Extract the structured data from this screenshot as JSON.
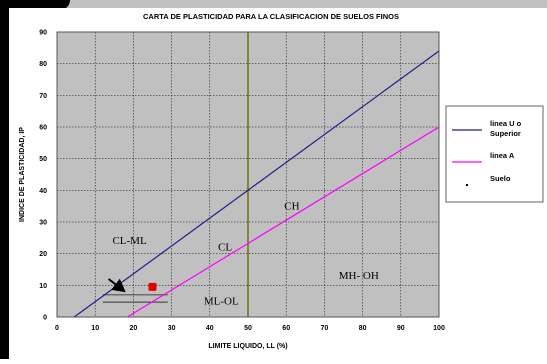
{
  "chart_data": {
    "type": "line",
    "title": "CARTA DE PLASTICIDAD PARA LA CLASIFICACION DE SUELOS FINOS",
    "xlabel": "LIMITE LIQUIDO, LL (%)",
    "ylabel": "INDICE DE PLASTICIDAD, IP",
    "xlim": [
      0,
      100
    ],
    "ylim": [
      0,
      90
    ],
    "xticks": [
      "0",
      "10",
      "20",
      "30",
      "40",
      "50",
      "60",
      "70",
      "80",
      "90",
      "100"
    ],
    "yticks": [
      "0",
      "10",
      "20",
      "30",
      "40",
      "50",
      "60",
      "70",
      "80",
      "90"
    ],
    "grid": true,
    "legend_position": "right",
    "series": [
      {
        "name": "linea U o Superior",
        "color": "#1f1f8f",
        "x": [
          4.5,
          100
        ],
        "y": [
          0,
          84
        ]
      },
      {
        "name": "linea A",
        "color": "#ff00ff",
        "x": [
          18.4,
          100
        ],
        "y": [
          0,
          60
        ]
      },
      {
        "name": "Suelo",
        "color": "#e00000",
        "x": [
          25
        ],
        "y": [
          9.5
        ]
      }
    ],
    "divider_x": 50,
    "divider_color": "#6b6b00",
    "hatch_lines": [
      {
        "x": [
          12,
          29
        ],
        "y": [
          7,
          7
        ]
      },
      {
        "x": [
          12,
          29
        ],
        "y": [
          4.7,
          4.7
        ]
      }
    ],
    "region_labels": [
      {
        "text": "CH",
        "x": 61.5,
        "y": 34
      },
      {
        "text": "CL",
        "x": 44,
        "y": 21
      },
      {
        "text": "CL-ML",
        "x": 19,
        "y": 23
      },
      {
        "text": "MH- OH",
        "x": 79,
        "y": 12
      },
      {
        "text": "ML-OL",
        "x": 43,
        "y": 4
      }
    ],
    "annotation_arrow": {
      "from": [
        13.5,
        12
      ],
      "to": [
        18,
        7.8
      ],
      "color": "#000000"
    }
  }
}
